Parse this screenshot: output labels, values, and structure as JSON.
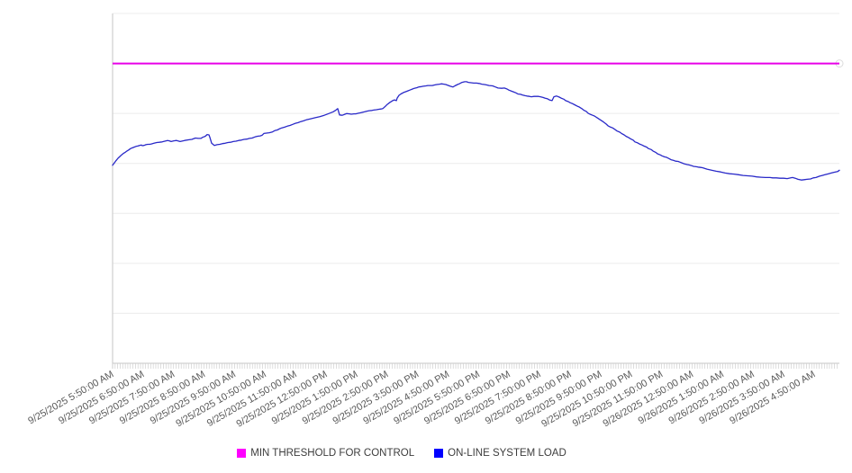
{
  "page": {
    "background": "#ffffff"
  },
  "legend": {
    "position": "bottom-center",
    "items": [
      {
        "label": "MIN THRESHOLD FOR CONTROL",
        "color": "#ff00ff"
      },
      {
        "label": "ON-LINE SYSTEM LOAD",
        "color": "#0000ff"
      }
    ]
  },
  "chart_data": {
    "type": "line",
    "title": "",
    "grid": true,
    "legend_position": "bottom-center",
    "x_axis": {
      "label_rotation_deg": -30,
      "minor_tick_interval_minutes": 5,
      "labels": [
        "9/25/2025 5:50:00 AM",
        "9/25/2025 6:50:00 AM",
        "9/25/2025 7:50:00 AM",
        "9/25/2025 8:50:00 AM",
        "9/25/2025 9:50:00 AM",
        "9/25/2025 10:50:00 AM",
        "9/25/2025 11:50:00 AM",
        "9/25/2025 12:50:00 PM",
        "9/25/2025 1:50:00 PM",
        "9/25/2025 2:50:00 PM",
        "9/25/2025 3:50:00 PM",
        "9/25/2025 4:50:00 PM",
        "9/25/2025 5:50:00 PM",
        "9/25/2025 6:50:00 PM",
        "9/25/2025 7:50:00 PM",
        "9/25/2025 8:50:00 PM",
        "9/25/2025 9:50:00 PM",
        "9/25/2025 10:50:00 PM",
        "9/25/2025 11:50:00 PM",
        "9/26/2025 12:50:00 AM",
        "9/26/2025 1:50:00 AM",
        "9/26/2025 2:50:00 AM",
        "9/26/2025 3:50:00 AM",
        "9/26/2025 4:50:00 AM"
      ]
    },
    "y_axis": {
      "labels_visible": false,
      "note": "no y-axis tick labels visible; series values are percent of plot height",
      "range_pct": [
        0,
        100
      ],
      "gridline_divisions": 7
    },
    "series": [
      {
        "name": "MIN THRESHOLD FOR CONTROL",
        "type": "constant-threshold",
        "color": "#e800e8",
        "value_pct": 85.7
      },
      {
        "name": "ON-LINE SYSTEM LOAD",
        "type": "line",
        "color": "#2929c8",
        "x_unit": "fraction of time axis (0 = 9/25/2025 5:50 AM at left edge, 1 = right edge)",
        "points": [
          [
            0.0,
            56.6
          ],
          [
            0.0025,
            57.3
          ],
          [
            0.005,
            58.0
          ],
          [
            0.0074,
            58.6
          ],
          [
            0.0099,
            59.1
          ],
          [
            0.0124,
            59.6
          ],
          [
            0.0149,
            60.0
          ],
          [
            0.0173,
            60.3
          ],
          [
            0.0198,
            60.7
          ],
          [
            0.0223,
            61.0
          ],
          [
            0.0248,
            61.4
          ],
          [
            0.0273,
            61.6
          ],
          [
            0.0297,
            61.8
          ],
          [
            0.0322,
            62.0
          ],
          [
            0.0347,
            62.1
          ],
          [
            0.0372,
            62.3
          ],
          [
            0.0397,
            62.4
          ],
          [
            0.0409,
            62.2
          ],
          [
            0.0434,
            62.3
          ],
          [
            0.0459,
            62.5
          ],
          [
            0.0483,
            62.6
          ],
          [
            0.0508,
            62.6
          ],
          [
            0.0533,
            62.7
          ],
          [
            0.057,
            62.9
          ],
          [
            0.0607,
            63.1
          ],
          [
            0.0644,
            63.2
          ],
          [
            0.0682,
            63.3
          ],
          [
            0.0719,
            63.5
          ],
          [
            0.0756,
            63.7
          ],
          [
            0.0781,
            63.6
          ],
          [
            0.0806,
            63.4
          ],
          [
            0.0843,
            63.6
          ],
          [
            0.088,
            63.7
          ],
          [
            0.0929,
            63.4
          ],
          [
            0.0991,
            63.7
          ],
          [
            0.1053,
            63.9
          ],
          [
            0.109,
            64.0
          ],
          [
            0.114,
            64.4
          ],
          [
            0.1177,
            64.3
          ],
          [
            0.1214,
            64.3
          ],
          [
            0.1239,
            64.6
          ],
          [
            0.1276,
            64.9
          ],
          [
            0.1301,
            65.4
          ],
          [
            0.1326,
            65.3
          ],
          [
            0.1338,
            64.6
          ],
          [
            0.1363,
            62.9
          ],
          [
            0.14,
            62.3
          ],
          [
            0.1437,
            62.5
          ],
          [
            0.1475,
            62.6
          ],
          [
            0.1512,
            62.8
          ],
          [
            0.1549,
            62.9
          ],
          [
            0.1586,
            63.1
          ],
          [
            0.1623,
            63.2
          ],
          [
            0.1661,
            63.4
          ],
          [
            0.1698,
            63.5
          ],
          [
            0.1735,
            63.7
          ],
          [
            0.1772,
            63.8
          ],
          [
            0.1809,
            64.0
          ],
          [
            0.1846,
            64.1
          ],
          [
            0.1884,
            64.3
          ],
          [
            0.1921,
            64.4
          ],
          [
            0.1958,
            64.7
          ],
          [
            0.1995,
            64.9
          ],
          [
            0.2032,
            65.0
          ],
          [
            0.2057,
            65.2
          ],
          [
            0.2082,
            65.7
          ],
          [
            0.2119,
            65.8
          ],
          [
            0.2156,
            65.9
          ],
          [
            0.2193,
            66.1
          ],
          [
            0.223,
            66.5
          ],
          [
            0.2268,
            66.7
          ],
          [
            0.2292,
            67.0
          ],
          [
            0.233,
            67.3
          ],
          [
            0.2367,
            67.5
          ],
          [
            0.2404,
            67.8
          ],
          [
            0.2441,
            68.0
          ],
          [
            0.2478,
            68.3
          ],
          [
            0.2516,
            68.6
          ],
          [
            0.2553,
            68.8
          ],
          [
            0.259,
            69.1
          ],
          [
            0.2627,
            69.3
          ],
          [
            0.2664,
            69.6
          ],
          [
            0.2726,
            69.9
          ],
          [
            0.2788,
            70.2
          ],
          [
            0.285,
            70.5
          ],
          [
            0.2912,
            70.9
          ],
          [
            0.2974,
            71.4
          ],
          [
            0.3036,
            71.9
          ],
          [
            0.3073,
            72.4
          ],
          [
            0.3098,
            72.8
          ],
          [
            0.3123,
            71.0
          ],
          [
            0.316,
            70.9
          ],
          [
            0.3197,
            71.2
          ],
          [
            0.3222,
            71.4
          ],
          [
            0.3259,
            71.3
          ],
          [
            0.3284,
            71.2
          ],
          [
            0.3321,
            71.3
          ],
          [
            0.3346,
            71.3
          ],
          [
            0.3383,
            71.5
          ],
          [
            0.3408,
            71.6
          ],
          [
            0.3445,
            71.8
          ],
          [
            0.347,
            71.9
          ],
          [
            0.3507,
            72.1
          ],
          [
            0.3532,
            72.2
          ],
          [
            0.3569,
            72.3
          ],
          [
            0.3594,
            72.4
          ],
          [
            0.3631,
            72.5
          ],
          [
            0.3656,
            72.6
          ],
          [
            0.3693,
            72.7
          ],
          [
            0.3718,
            72.8
          ],
          [
            0.3755,
            73.5
          ],
          [
            0.378,
            74.0
          ],
          [
            0.3817,
            74.6
          ],
          [
            0.3854,
            75.1
          ],
          [
            0.3879,
            75.3
          ],
          [
            0.3904,
            75.1
          ],
          [
            0.3916,
            75.8
          ],
          [
            0.3941,
            76.6
          ],
          [
            0.3966,
            77.0
          ],
          [
            0.4003,
            77.4
          ],
          [
            0.4028,
            77.6
          ],
          [
            0.4065,
            77.9
          ],
          [
            0.4089,
            78.1
          ],
          [
            0.4127,
            78.4
          ],
          [
            0.4151,
            78.6
          ],
          [
            0.4188,
            78.8
          ],
          [
            0.4213,
            79.0
          ],
          [
            0.425,
            79.1
          ],
          [
            0.4275,
            79.2
          ],
          [
            0.4312,
            79.3
          ],
          [
            0.4337,
            79.4
          ],
          [
            0.4399,
            79.4
          ],
          [
            0.4436,
            79.6
          ],
          [
            0.4461,
            79.7
          ],
          [
            0.4498,
            79.8
          ],
          [
            0.4523,
            79.9
          ],
          [
            0.456,
            79.8
          ],
          [
            0.4585,
            79.7
          ],
          [
            0.4622,
            79.4
          ],
          [
            0.4647,
            79.2
          ],
          [
            0.4684,
            79.0
          ],
          [
            0.4709,
            79.3
          ],
          [
            0.4746,
            79.7
          ],
          [
            0.4771,
            79.9
          ],
          [
            0.4808,
            80.3
          ],
          [
            0.4845,
            80.5
          ],
          [
            0.487,
            80.5
          ],
          [
            0.4895,
            80.3
          ],
          [
            0.4932,
            80.2
          ],
          [
            0.4969,
            80.1
          ],
          [
            0.5006,
            80.1
          ],
          [
            0.5043,
            80.0
          ],
          [
            0.5081,
            79.8
          ],
          [
            0.5118,
            79.7
          ],
          [
            0.5142,
            79.6
          ],
          [
            0.518,
            79.4
          ],
          [
            0.5229,
            79.3
          ],
          [
            0.5266,
            79.0
          ],
          [
            0.5303,
            78.7
          ],
          [
            0.5353,
            78.6
          ],
          [
            0.539,
            78.7
          ],
          [
            0.5427,
            78.4
          ],
          [
            0.5452,
            78.1
          ],
          [
            0.5489,
            77.8
          ],
          [
            0.5514,
            77.6
          ],
          [
            0.5551,
            77.3
          ],
          [
            0.5576,
            77.0
          ],
          [
            0.5613,
            76.9
          ],
          [
            0.5638,
            76.7
          ],
          [
            0.5675,
            76.5
          ],
          [
            0.57,
            76.4
          ],
          [
            0.5737,
            76.3
          ],
          [
            0.5762,
            76.2
          ],
          [
            0.5799,
            76.3
          ],
          [
            0.5824,
            76.3
          ],
          [
            0.5861,
            76.3
          ],
          [
            0.5886,
            76.2
          ],
          [
            0.5923,
            76.0
          ],
          [
            0.5948,
            75.8
          ],
          [
            0.5985,
            75.6
          ],
          [
            0.601,
            75.3
          ],
          [
            0.6047,
            75.1
          ],
          [
            0.6072,
            76.2
          ],
          [
            0.6109,
            76.4
          ],
          [
            0.6146,
            76.1
          ],
          [
            0.6171,
            75.8
          ],
          [
            0.6208,
            75.5
          ],
          [
            0.6233,
            75.1
          ],
          [
            0.627,
            74.8
          ],
          [
            0.6295,
            74.5
          ],
          [
            0.6332,
            74.2
          ],
          [
            0.6357,
            73.9
          ],
          [
            0.6394,
            73.5
          ],
          [
            0.6419,
            73.3
          ],
          [
            0.6456,
            72.8
          ],
          [
            0.6481,
            72.4
          ],
          [
            0.6518,
            72.0
          ],
          [
            0.6543,
            71.5
          ],
          [
            0.658,
            71.1
          ],
          [
            0.6605,
            70.9
          ],
          [
            0.663,
            70.7
          ],
          [
            0.6667,
            70.2
          ],
          [
            0.6704,
            69.7
          ],
          [
            0.6754,
            69.0
          ],
          [
            0.6791,
            68.4
          ],
          [
            0.6816,
            67.9
          ],
          [
            0.6853,
            67.5
          ],
          [
            0.6878,
            67.3
          ],
          [
            0.6915,
            66.8
          ],
          [
            0.694,
            66.4
          ],
          [
            0.6977,
            66.1
          ],
          [
            0.7002,
            65.7
          ],
          [
            0.7039,
            65.3
          ],
          [
            0.7063,
            64.9
          ],
          [
            0.7101,
            64.5
          ],
          [
            0.7125,
            64.2
          ],
          [
            0.7162,
            63.8
          ],
          [
            0.7187,
            63.3
          ],
          [
            0.7224,
            63.0
          ],
          [
            0.7249,
            62.7
          ],
          [
            0.7286,
            62.4
          ],
          [
            0.7311,
            62.1
          ],
          [
            0.7348,
            61.8
          ],
          [
            0.7373,
            61.4
          ],
          [
            0.741,
            61.1
          ],
          [
            0.7435,
            60.7
          ],
          [
            0.7472,
            60.3
          ],
          [
            0.7497,
            59.9
          ],
          [
            0.7534,
            59.6
          ],
          [
            0.7559,
            59.3
          ],
          [
            0.7596,
            59.0
          ],
          [
            0.7621,
            58.9
          ],
          [
            0.7658,
            58.5
          ],
          [
            0.7683,
            58.2
          ],
          [
            0.772,
            58.0
          ],
          [
            0.7745,
            57.8
          ],
          [
            0.7782,
            57.7
          ],
          [
            0.7807,
            57.5
          ],
          [
            0.7844,
            57.2
          ],
          [
            0.7869,
            57.0
          ],
          [
            0.7906,
            56.8
          ],
          [
            0.7931,
            56.7
          ],
          [
            0.7968,
            56.5
          ],
          [
            0.7993,
            56.3
          ],
          [
            0.803,
            56.2
          ],
          [
            0.8055,
            56.1
          ],
          [
            0.8092,
            56.0
          ],
          [
            0.8117,
            55.9
          ],
          [
            0.8179,
            55.5
          ],
          [
            0.8241,
            55.2
          ],
          [
            0.8303,
            54.9
          ],
          [
            0.8365,
            54.7
          ],
          [
            0.8427,
            54.4
          ],
          [
            0.8489,
            54.2
          ],
          [
            0.8551,
            54.1
          ],
          [
            0.8613,
            53.9
          ],
          [
            0.8675,
            53.7
          ],
          [
            0.8737,
            53.6
          ],
          [
            0.8799,
            53.5
          ],
          [
            0.8861,
            53.3
          ],
          [
            0.8923,
            53.2
          ],
          [
            0.8984,
            53.1
          ],
          [
            0.9046,
            53.1
          ],
          [
            0.9083,
            53.0
          ],
          [
            0.9133,
            53.0
          ],
          [
            0.9182,
            52.9
          ],
          [
            0.9232,
            52.9
          ],
          [
            0.9282,
            52.8
          ],
          [
            0.9331,
            53.0
          ],
          [
            0.9356,
            53.1
          ],
          [
            0.9393,
            52.9
          ],
          [
            0.943,
            52.6
          ],
          [
            0.948,
            52.4
          ],
          [
            0.9517,
            52.5
          ],
          [
            0.9554,
            52.6
          ],
          [
            0.9604,
            52.7
          ],
          [
            0.9641,
            53.0
          ],
          [
            0.9678,
            53.1
          ],
          [
            0.9728,
            53.5
          ],
          [
            0.9765,
            53.7
          ],
          [
            0.9802,
            53.9
          ],
          [
            0.9851,
            54.2
          ],
          [
            0.9889,
            54.4
          ],
          [
            0.9926,
            54.6
          ],
          [
            0.9975,
            54.8
          ],
          [
            1.0,
            55.2
          ]
        ]
      }
    ]
  }
}
